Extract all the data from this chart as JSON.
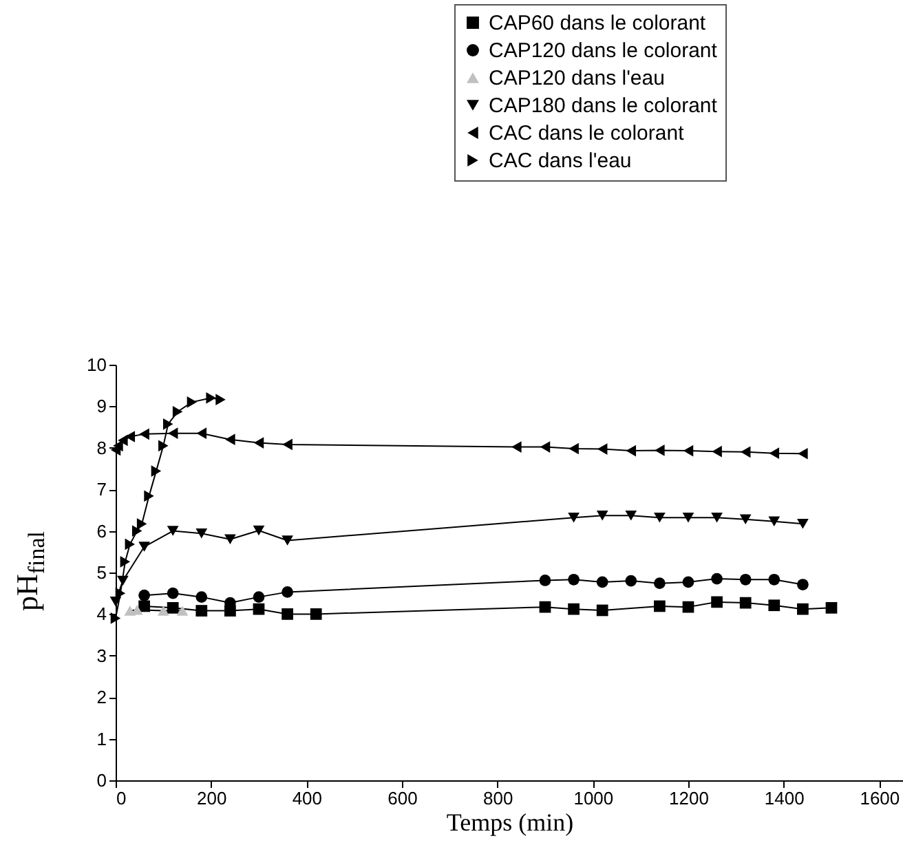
{
  "chart_data": {
    "type": "line",
    "xlabel": "Temps (min)",
    "ylabel": "pH$_{final}$",
    "xlim": [
      0,
      1650
    ],
    "ylim": [
      0,
      10
    ],
    "xticks": [
      0,
      200,
      400,
      600,
      800,
      1000,
      1200,
      1400,
      1600
    ],
    "yticks": [
      0,
      1,
      2,
      3,
      4,
      5,
      6,
      7,
      8,
      9,
      10
    ],
    "grid": false,
    "legend": "top right",
    "line_style": "solid",
    "series": [
      {
        "name": "CAP60 dans le colorant",
        "color": "#000000",
        "marker": "square",
        "x": [
          60,
          120,
          180,
          240,
          300,
          360,
          420,
          900,
          960,
          1020,
          1140,
          1200,
          1260,
          1320,
          1380,
          1440,
          1500
        ],
        "values": [
          4.19,
          4.15,
          4.08,
          4.08,
          4.12,
          4.0,
          4.0,
          4.17,
          4.12,
          4.09,
          4.19,
          4.17,
          4.29,
          4.27,
          4.21,
          4.12,
          4.15
        ]
      },
      {
        "name": "CAP120 dans le colorant",
        "color": "#000000",
        "marker": "circle",
        "x": [
          60,
          120,
          180,
          240,
          300,
          360,
          900,
          960,
          1020,
          1080,
          1140,
          1200,
          1260,
          1320,
          1380,
          1440
        ],
        "values": [
          4.45,
          4.5,
          4.41,
          4.27,
          4.41,
          4.53,
          4.81,
          4.83,
          4.77,
          4.8,
          4.74,
          4.77,
          4.85,
          4.83,
          4.83,
          4.71
        ]
      },
      {
        "name": "CAP120 dans l'eau",
        "color": "#c0c0c0",
        "marker": "triangle",
        "x": [
          30,
          45,
          100,
          140
        ],
        "values": [
          4.08,
          4.1,
          4.08,
          4.08
        ]
      },
      {
        "name": "CAP180 dans le colorant",
        "color": "#000000",
        "marker": "triangle-down",
        "x": [
          0,
          15,
          60,
          120,
          180,
          240,
          300,
          360,
          960,
          1020,
          1080,
          1140,
          1200,
          1260,
          1320,
          1380,
          1440
        ],
        "values": [
          4.3,
          4.8,
          5.62,
          6.0,
          5.94,
          5.8,
          6.01,
          5.77,
          6.32,
          6.37,
          6.37,
          6.32,
          6.32,
          6.32,
          6.28,
          6.23,
          6.17
        ]
      },
      {
        "name": "CAC dans le colorant",
        "color": "#000000",
        "marker": "triangle-left",
        "x": [
          0,
          5,
          15,
          30,
          60,
          120,
          180,
          240,
          300,
          360,
          840,
          900,
          960,
          1020,
          1080,
          1140,
          1200,
          1260,
          1320,
          1380,
          1440
        ],
        "values": [
          7.95,
          8.05,
          8.18,
          8.27,
          8.33,
          8.35,
          8.35,
          8.2,
          8.12,
          8.08,
          8.02,
          8.02,
          7.98,
          7.97,
          7.93,
          7.94,
          7.93,
          7.91,
          7.9,
          7.87,
          7.86
        ]
      },
      {
        "name": "CAC dans l'eau",
        "color": "#000000",
        "marker": "triangle-right",
        "x": [
          0,
          10,
          20,
          30,
          45,
          55,
          70,
          85,
          100,
          110,
          130,
          160,
          200,
          220
        ],
        "values": [
          3.9,
          4.5,
          5.26,
          5.68,
          6.0,
          6.17,
          6.84,
          7.44,
          8.05,
          8.57,
          8.87,
          9.1,
          9.2,
          9.16
        ]
      }
    ]
  }
}
